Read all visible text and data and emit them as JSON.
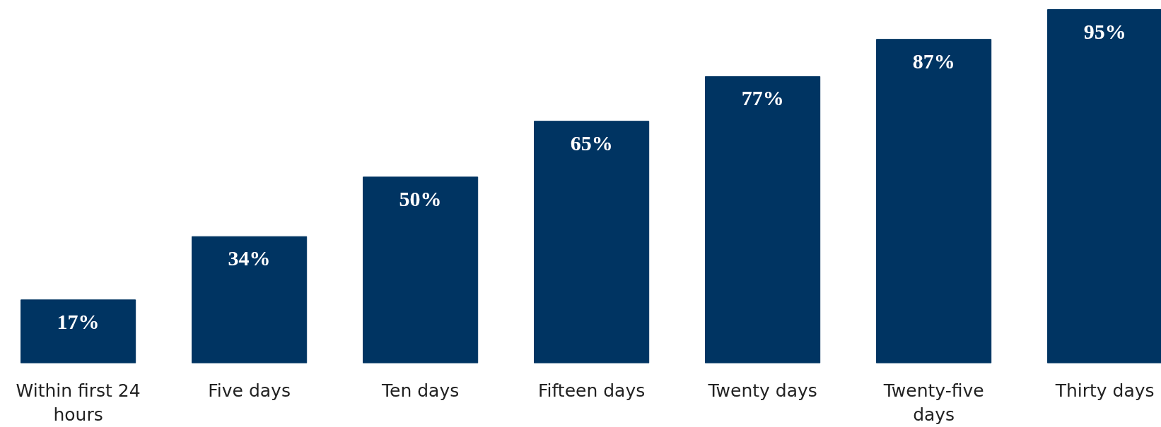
{
  "chart_data": {
    "type": "bar",
    "categories": [
      "Within first 24 hours",
      "Five days",
      "Ten days",
      "Fifteen days",
      "Twenty days",
      "Twenty-five days",
      "Thirty days"
    ],
    "values": [
      17,
      34,
      50,
      65,
      77,
      87,
      95
    ],
    "value_labels": [
      "17%",
      "34%",
      "50%",
      "65%",
      "77%",
      "87%",
      "95%"
    ],
    "color": "#003462",
    "grid": false
  }
}
